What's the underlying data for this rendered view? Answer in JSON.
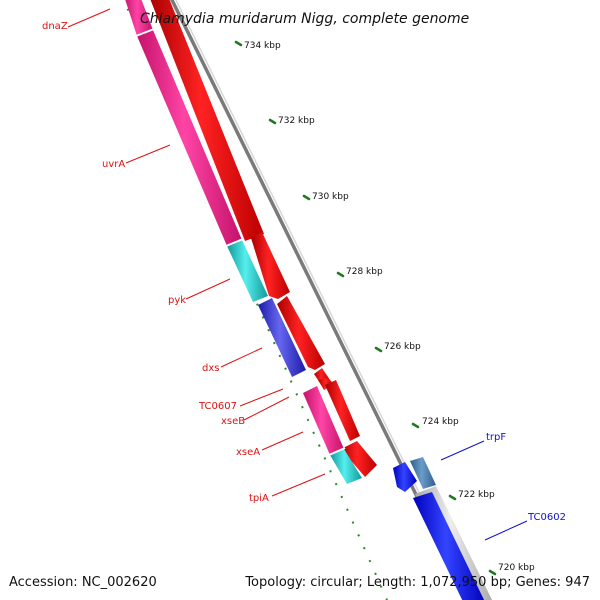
{
  "title": "Chlamydia muridarum Nigg, complete genome",
  "footer": {
    "accession": "Accession: NC_002620",
    "topology": "Topology: circular; Length: 1,072,950 bp; Genes: 947"
  },
  "colors": {
    "forward_label": "#dd1111",
    "reverse_label": "#1111cc",
    "red_cds": "#ee0000",
    "pink_cds": "#ee2288",
    "cyan_cds": "#22cccc",
    "blue_cds": "#3333dd",
    "steel_cds": "#4477aa",
    "grey_cds": "#c8c8c8",
    "backbone": "#999999",
    "tick_dots": "#2a8a2a"
  },
  "ticks": [
    "734 kbp",
    "732 kbp",
    "730 kbp",
    "728 kbp",
    "726 kbp",
    "724 kbp",
    "722 kbp",
    "720 kbp"
  ],
  "genes": {
    "left": [
      "dnaZ",
      "uvrA",
      "pyk",
      "dxs",
      "TC0607",
      "xseB",
      "xseA",
      "tpiA"
    ],
    "right": [
      "trpF",
      "TC0602"
    ]
  }
}
